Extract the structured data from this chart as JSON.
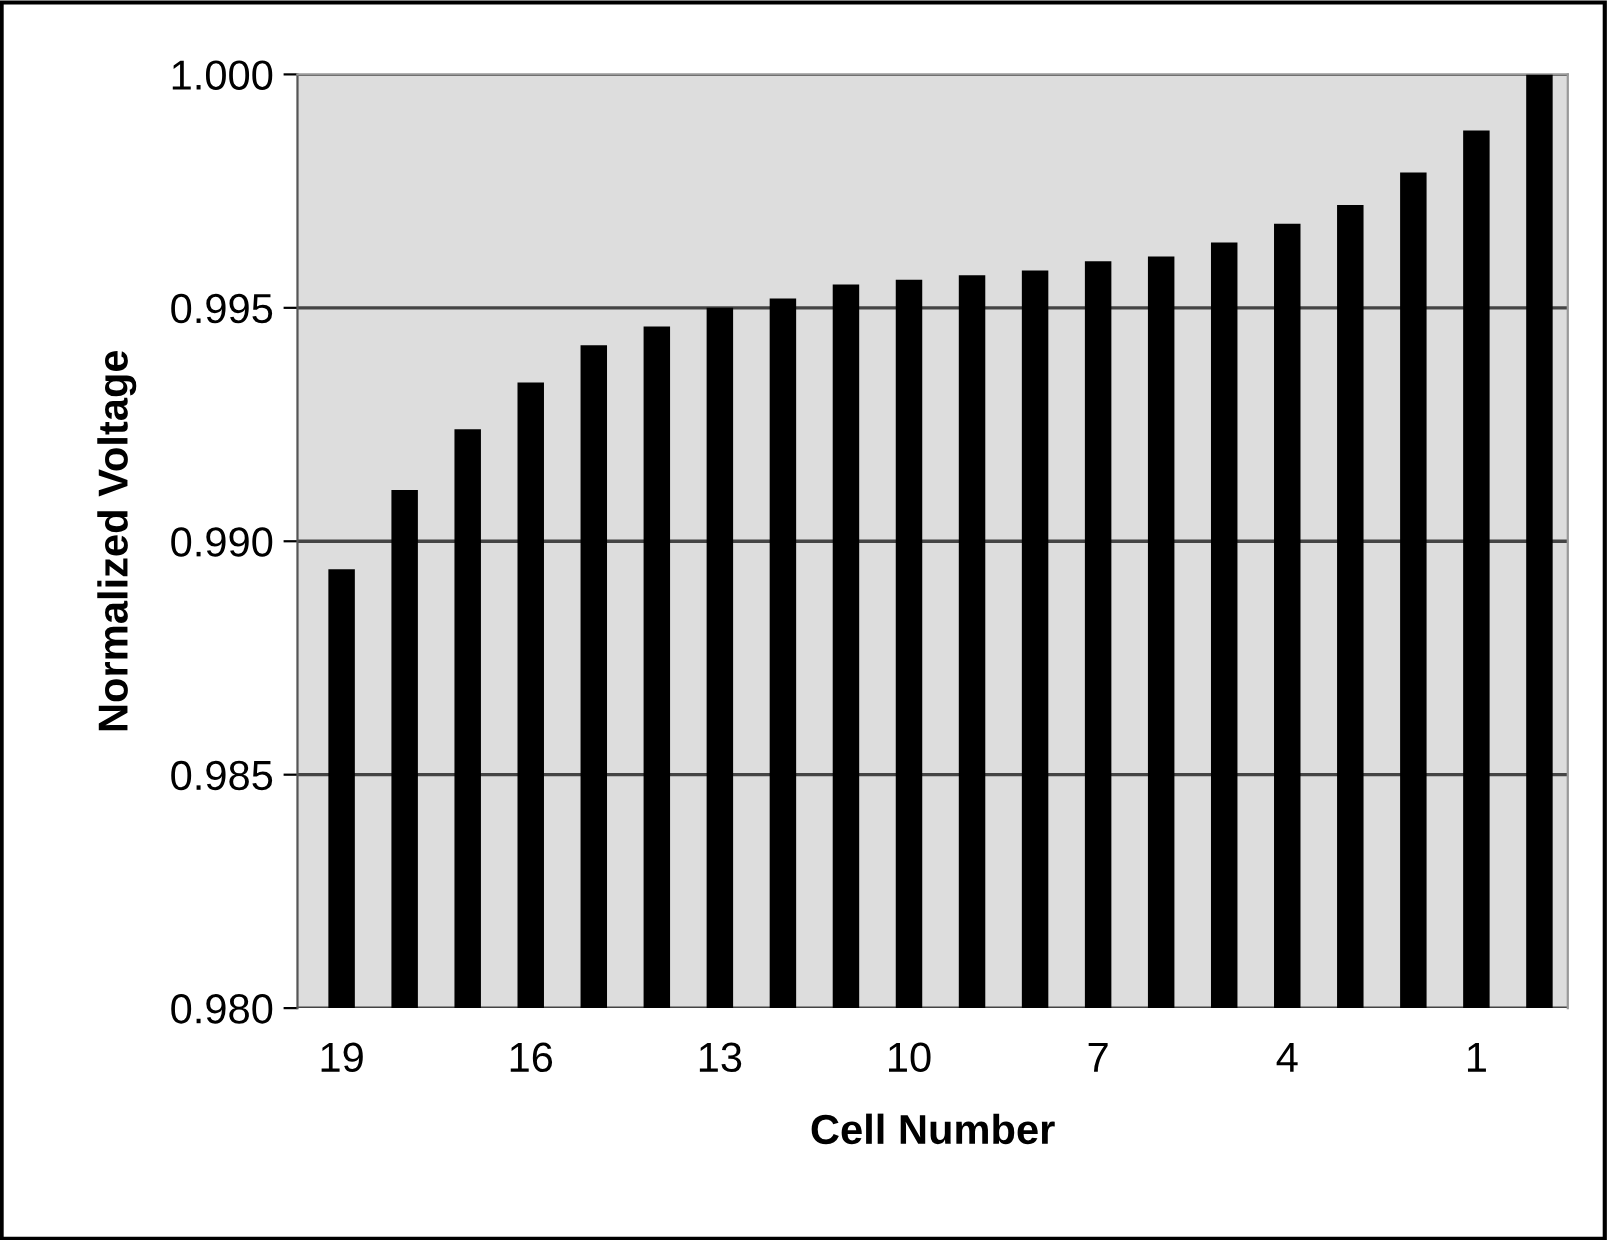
{
  "chart_data": {
    "type": "bar",
    "xlabel": "Cell Number",
    "ylabel": "Normalized Voltage",
    "categories": [
      "19",
      null,
      null,
      "16",
      null,
      null,
      "13",
      null,
      null,
      "10",
      null,
      null,
      "7",
      null,
      null,
      "4",
      null,
      null,
      "1",
      null
    ],
    "series": [
      {
        "color": "#000000",
        "values": [
          0.9894,
          0.9911,
          0.9924,
          0.9934,
          0.9942,
          0.9946,
          0.995,
          0.9952,
          0.9955,
          0.9956,
          0.9957,
          0.9958,
          0.996,
          0.9961,
          0.9964,
          0.9968,
          0.9972,
          0.9979,
          0.9988,
          1.0
        ]
      }
    ],
    "ylim": [
      0.98,
      1.0
    ],
    "yticks": [
      {
        "value": 0.98,
        "label": "0.980"
      },
      {
        "value": 0.985,
        "label": "0.985"
      },
      {
        "value": 0.99,
        "label": "0.990"
      },
      {
        "value": 0.995,
        "label": "0.995"
      },
      {
        "value": 1.0,
        "label": "1.000"
      }
    ],
    "grid": "y",
    "legend": false
  }
}
